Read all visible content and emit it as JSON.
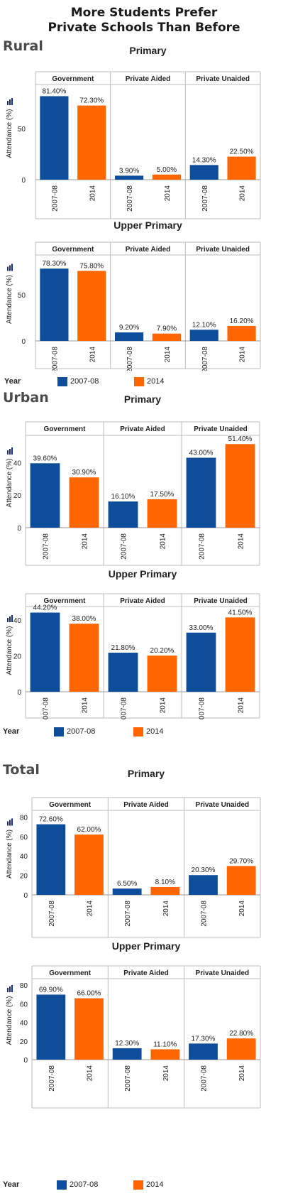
{
  "title": {
    "line1": "More Students Prefer",
    "line2": "Private Schools Than Before"
  },
  "regions": [
    "Rural",
    "Urban",
    "Total"
  ],
  "legend": {
    "title": "Year",
    "items": [
      {
        "label": "2007-08",
        "color": "#0d4d9a"
      },
      {
        "label": "2014",
        "color": "#ff6600"
      }
    ]
  },
  "chart_data": [
    {
      "type": "bar",
      "region": "Rural",
      "title": "Primary",
      "ylabel": "Attendance (%)",
      "groups": [
        "Government",
        "Private Aided",
        "Private Unaided"
      ],
      "categories": [
        "2007-08",
        "2014"
      ],
      "values": [
        [
          81.4,
          72.3
        ],
        [
          3.9,
          5.0
        ],
        [
          14.3,
          22.5
        ]
      ],
      "labels": [
        [
          "81.40%",
          "72.30%"
        ],
        [
          "3.90%",
          "5.00%"
        ],
        [
          "14.30%",
          "22.50%"
        ]
      ],
      "yticks": [
        0,
        50
      ],
      "ylim": [
        0,
        90
      ]
    },
    {
      "type": "bar",
      "region": "Rural",
      "title": "Upper Primary",
      "ylabel": "Attendance (%)",
      "groups": [
        "Government",
        "Private Aided",
        "Private Unaided"
      ],
      "categories": [
        "2007-08",
        "2014"
      ],
      "values": [
        [
          78.3,
          75.8
        ],
        [
          9.2,
          7.9
        ],
        [
          12.1,
          16.2
        ]
      ],
      "labels": [
        [
          "78.30%",
          "75.80%"
        ],
        [
          "9.20%",
          "7.90%"
        ],
        [
          "12.10%",
          "16.20%"
        ]
      ],
      "yticks": [
        0,
        50
      ],
      "ylim": [
        0,
        90
      ]
    },
    {
      "type": "bar",
      "region": "Urban",
      "title": "Primary",
      "ylabel": "Attendance (%)",
      "groups": [
        "Government",
        "Private Aided",
        "Private Unaided"
      ],
      "categories": [
        "2007-08",
        "2014"
      ],
      "values": [
        [
          39.6,
          30.9
        ],
        [
          16.1,
          17.5
        ],
        [
          43.0,
          51.4
        ]
      ],
      "labels": [
        [
          "39.60%",
          "30.90%"
        ],
        [
          "16.10%",
          "17.50%"
        ],
        [
          "43.00%",
          "51.40%"
        ]
      ],
      "yticks": [
        0,
        20,
        40
      ],
      "ylim": [
        0,
        55
      ]
    },
    {
      "type": "bar",
      "region": "Urban",
      "title": "Upper Primary",
      "ylabel": "Attendance (%)",
      "groups": [
        "Government",
        "Private Aided",
        "Private Unaided"
      ],
      "categories": [
        "2007-08",
        "2014"
      ],
      "values": [
        [
          44.2,
          38.0
        ],
        [
          21.8,
          20.2
        ],
        [
          33.0,
          41.5
        ]
      ],
      "labels": [
        [
          "44.20%",
          "38.00%"
        ],
        [
          "21.80%",
          "20.20%"
        ],
        [
          "33.00%",
          "41.50%"
        ]
      ],
      "yticks": [
        0,
        20,
        40
      ],
      "ylim": [
        0,
        46
      ]
    },
    {
      "type": "bar",
      "region": "Total",
      "title": "Primary",
      "ylabel": "Attendance (%)",
      "groups": [
        "Government",
        "Private Aided",
        "Private Unaided"
      ],
      "categories": [
        "2007-08",
        "2014"
      ],
      "values": [
        [
          72.6,
          62.0
        ],
        [
          6.5,
          8.1
        ],
        [
          20.3,
          29.7
        ]
      ],
      "labels": [
        [
          "72.60%",
          "62.00%"
        ],
        [
          "6.50%",
          "8.10%"
        ],
        [
          "20.30%",
          "29.70%"
        ]
      ],
      "yticks": [
        0,
        20,
        40,
        60,
        80
      ],
      "ylim": [
        0,
        84
      ]
    },
    {
      "type": "bar",
      "region": "Total",
      "title": "Upper Primary",
      "ylabel": "Attendance (%)",
      "groups": [
        "Government",
        "Private Aided",
        "Private Unaided"
      ],
      "categories": [
        "2007-08",
        "2014"
      ],
      "values": [
        [
          69.9,
          66.0
        ],
        [
          12.3,
          11.1
        ],
        [
          17.3,
          22.8
        ]
      ],
      "labels": [
        [
          "69.90%",
          "66.00%"
        ],
        [
          "12.30%",
          "11.10%"
        ],
        [
          "17.30%",
          "22.80%"
        ]
      ],
      "yticks": [
        0,
        20,
        40,
        60,
        80
      ],
      "ylim": [
        0,
        84
      ]
    }
  ]
}
